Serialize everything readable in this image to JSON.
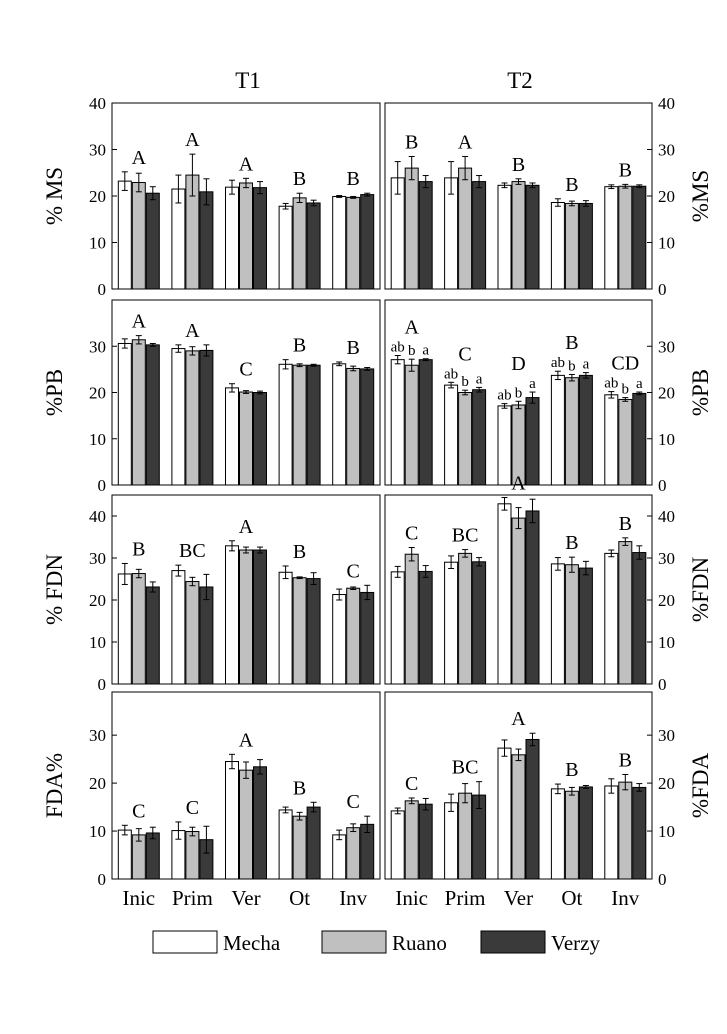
{
  "figure": {
    "column_titles": [
      "T1",
      "T2"
    ],
    "categories": [
      "Inic",
      "Prim",
      "Ver",
      "Ot",
      "Inv"
    ],
    "legend": [
      {
        "name": "Mecha",
        "color": "#ffffff"
      },
      {
        "name": "Ruano",
        "color": "#c0c0c0"
      },
      {
        "name": "Verzy",
        "color": "#3a3a3a"
      }
    ],
    "row_labels": [
      {
        "left": "% MS",
        "right": "%MS"
      },
      {
        "left": "%PB",
        "right": "%PB"
      },
      {
        "left": "% FDN",
        "right": "%FDN"
      },
      {
        "left": "FDA%",
        "right": "%FDA"
      }
    ]
  },
  "chart_data": [
    {
      "type": "bar",
      "panel": "T1",
      "row": "% MS",
      "categories": [
        "Inic",
        "Prim",
        "Ver",
        "Ot",
        "Inv"
      ],
      "ylim": [
        0,
        40
      ],
      "yticks": [
        "0",
        "10",
        "20",
        "30",
        "40"
      ],
      "series": [
        {
          "name": "Mecha",
          "values": [
            23.2,
            21.5,
            21.9,
            17.8,
            19.9
          ],
          "errors": [
            2.0,
            3.0,
            1.5,
            0.6,
            0.2
          ]
        },
        {
          "name": "Ruano",
          "values": [
            22.9,
            24.5,
            22.8,
            19.6,
            19.7
          ],
          "errors": [
            2.0,
            4.5,
            1.0,
            1.0,
            0.2
          ]
        },
        {
          "name": "Verzy",
          "values": [
            20.6,
            20.9,
            21.8,
            18.5,
            20.3
          ],
          "errors": [
            1.4,
            2.8,
            1.3,
            0.6,
            0.3
          ]
        }
      ],
      "group_letters": [
        "A",
        "A",
        "A",
        "B",
        "B"
      ]
    },
    {
      "type": "bar",
      "panel": "T2",
      "row": "%MS",
      "categories": [
        "Inic",
        "Prim",
        "Ver",
        "Ot",
        "Inv"
      ],
      "ylim": [
        0,
        40
      ],
      "yticks": [
        "0",
        "10",
        "20",
        "30",
        "40"
      ],
      "series": [
        {
          "name": "Mecha",
          "values": [
            23.9,
            23.9,
            22.3,
            18.6,
            22.0
          ],
          "errors": [
            3.5,
            3.5,
            0.5,
            0.8,
            0.4
          ]
        },
        {
          "name": "Ruano",
          "values": [
            26.0,
            26.0,
            23.1,
            18.4,
            22.1
          ],
          "errors": [
            2.5,
            2.5,
            0.6,
            0.5,
            0.4
          ]
        },
        {
          "name": "Verzy",
          "values": [
            23.1,
            23.1,
            22.3,
            18.4,
            22.1
          ],
          "errors": [
            1.3,
            1.3,
            0.5,
            0.6,
            0.3
          ]
        }
      ],
      "group_letters": [
        "B",
        "A",
        "B",
        "B",
        "B"
      ]
    },
    {
      "type": "bar",
      "panel": "T1",
      "row": "%PB",
      "categories": [
        "Inic",
        "Prim",
        "Ver",
        "Ot",
        "Inv"
      ],
      "ylim": [
        0,
        40
      ],
      "yticks": [
        "0",
        "10",
        "20",
        "30"
      ],
      "series": [
        {
          "name": "Mecha",
          "values": [
            30.6,
            29.5,
            21.0,
            26.1,
            26.2
          ],
          "errors": [
            1.0,
            0.8,
            0.9,
            1.0,
            0.4
          ]
        },
        {
          "name": "Ruano",
          "values": [
            31.4,
            29.0,
            20.1,
            25.9,
            25.2
          ],
          "errors": [
            0.9,
            0.9,
            0.3,
            0.3,
            0.5
          ]
        },
        {
          "name": "Verzy",
          "values": [
            30.3,
            29.1,
            20.0,
            25.9,
            25.1
          ],
          "errors": [
            0.3,
            1.2,
            0.3,
            0.2,
            0.3
          ]
        }
      ],
      "group_letters": [
        "A",
        "A",
        "C",
        "B",
        "B"
      ]
    },
    {
      "type": "bar",
      "panel": "T2",
      "row": "%PB",
      "categories": [
        "Inic",
        "Prim",
        "Ver",
        "Ot",
        "Inv"
      ],
      "ylim": [
        0,
        40
      ],
      "yticks": [
        "0",
        "10",
        "20",
        "30"
      ],
      "series": [
        {
          "name": "Mecha",
          "values": [
            27.1,
            21.6,
            17.1,
            23.7,
            19.5
          ],
          "errors": [
            0.9,
            0.6,
            0.5,
            0.9,
            0.7
          ]
        },
        {
          "name": "Ruano",
          "values": [
            25.9,
            20.0,
            17.3,
            23.2,
            18.5
          ],
          "errors": [
            1.3,
            0.5,
            0.8,
            0.7,
            0.4
          ]
        },
        {
          "name": "Verzy",
          "values": [
            27.1,
            20.6,
            18.9,
            23.7,
            19.8
          ],
          "errors": [
            0.2,
            0.5,
            1.2,
            0.6,
            0.3
          ]
        }
      ],
      "group_letters": [
        "A",
        "C",
        "D",
        "B",
        "CD"
      ],
      "bar_letters": [
        [
          "ab",
          "b",
          "a"
        ],
        [
          "ab",
          "b",
          "a"
        ],
        [
          "ab",
          "b",
          "a"
        ],
        [
          "ab",
          "b",
          "a"
        ],
        [
          "ab",
          "b",
          "a"
        ]
      ]
    },
    {
      "type": "bar",
      "panel": "T1",
      "row": "% FDN",
      "categories": [
        "Inic",
        "Prim",
        "Ver",
        "Ot",
        "Inv"
      ],
      "ylim": [
        0,
        45
      ],
      "yticks": [
        "0",
        "10",
        "20",
        "30",
        "40"
      ],
      "series": [
        {
          "name": "Mecha",
          "values": [
            26.2,
            27.0,
            32.9,
            26.6,
            21.3
          ],
          "errors": [
            2.5,
            1.3,
            1.2,
            1.5,
            1.3
          ]
        },
        {
          "name": "Ruano",
          "values": [
            26.3,
            24.4,
            31.9,
            25.3,
            22.8
          ],
          "errors": [
            1.0,
            1.0,
            0.7,
            0.2,
            0.3
          ]
        },
        {
          "name": "Verzy",
          "values": [
            23.1,
            23.1,
            31.9,
            25.1,
            21.8
          ],
          "errors": [
            1.2,
            3.0,
            0.7,
            1.4,
            1.7
          ]
        }
      ],
      "group_letters": [
        "B",
        "BC",
        "A",
        "B",
        "C"
      ]
    },
    {
      "type": "bar",
      "panel": "T2",
      "row": "%FDN",
      "categories": [
        "Inic",
        "Prim",
        "Ver",
        "Ot",
        "Inv"
      ],
      "ylim": [
        0,
        45
      ],
      "yticks": [
        "0",
        "10",
        "20",
        "30",
        "40"
      ],
      "series": [
        {
          "name": "Mecha",
          "values": [
            26.7,
            29.0,
            42.9,
            28.6,
            31.1
          ],
          "errors": [
            1.3,
            1.5,
            1.5,
            1.5,
            0.8
          ]
        },
        {
          "name": "Ruano",
          "values": [
            30.9,
            31.1,
            39.5,
            28.4,
            33.9
          ],
          "errors": [
            1.6,
            0.9,
            2.5,
            1.8,
            0.9
          ]
        },
        {
          "name": "Verzy",
          "values": [
            26.8,
            29.1,
            41.2,
            27.6,
            31.3
          ],
          "errors": [
            1.4,
            1.0,
            2.8,
            1.6,
            1.6
          ]
        }
      ],
      "group_letters": [
        "C",
        "BC",
        "A",
        "B",
        "B"
      ]
    },
    {
      "type": "bar",
      "panel": "T1",
      "row": "FDA%",
      "categories": [
        "Inic",
        "Prim",
        "Ver",
        "Ot",
        "Inv"
      ],
      "ylim": [
        0,
        39
      ],
      "yticks": [
        "0",
        "10",
        "20",
        "30"
      ],
      "series": [
        {
          "name": "Mecha",
          "values": [
            10.2,
            10.1,
            24.5,
            14.4,
            9.2
          ],
          "errors": [
            1.0,
            1.8,
            1.5,
            0.6,
            1.0
          ]
        },
        {
          "name": "Ruano",
          "values": [
            9.2,
            9.9,
            22.7,
            13.1,
            10.7
          ],
          "errors": [
            1.3,
            0.9,
            1.7,
            0.8,
            0.8
          ]
        },
        {
          "name": "Verzy",
          "values": [
            9.6,
            8.2,
            23.4,
            15.0,
            11.4
          ],
          "errors": [
            1.2,
            2.8,
            1.5,
            1.0,
            1.7
          ]
        }
      ],
      "group_letters": [
        "C",
        "C",
        "A",
        "B",
        "C"
      ]
    },
    {
      "type": "bar",
      "panel": "T2",
      "row": "%FDA",
      "categories": [
        "Inic",
        "Prim",
        "Ver",
        "Ot",
        "Inv"
      ],
      "ylim": [
        0,
        39
      ],
      "yticks": [
        "0",
        "10",
        "20",
        "30"
      ],
      "series": [
        {
          "name": "Mecha",
          "values": [
            14.2,
            15.9,
            27.3,
            18.8,
            19.4
          ],
          "errors": [
            0.6,
            1.8,
            1.7,
            1.0,
            1.5
          ]
        },
        {
          "name": "Ruano",
          "values": [
            16.3,
            17.9,
            25.9,
            18.3,
            20.2
          ],
          "errors": [
            0.6,
            2.0,
            1.2,
            0.8,
            1.6
          ]
        },
        {
          "name": "Verzy",
          "values": [
            15.6,
            17.5,
            29.1,
            19.2,
            19.1
          ],
          "errors": [
            1.2,
            2.8,
            1.3,
            0.3,
            0.8
          ]
        }
      ],
      "group_letters": [
        "C",
        "BC",
        "A",
        "B",
        "B"
      ]
    }
  ]
}
